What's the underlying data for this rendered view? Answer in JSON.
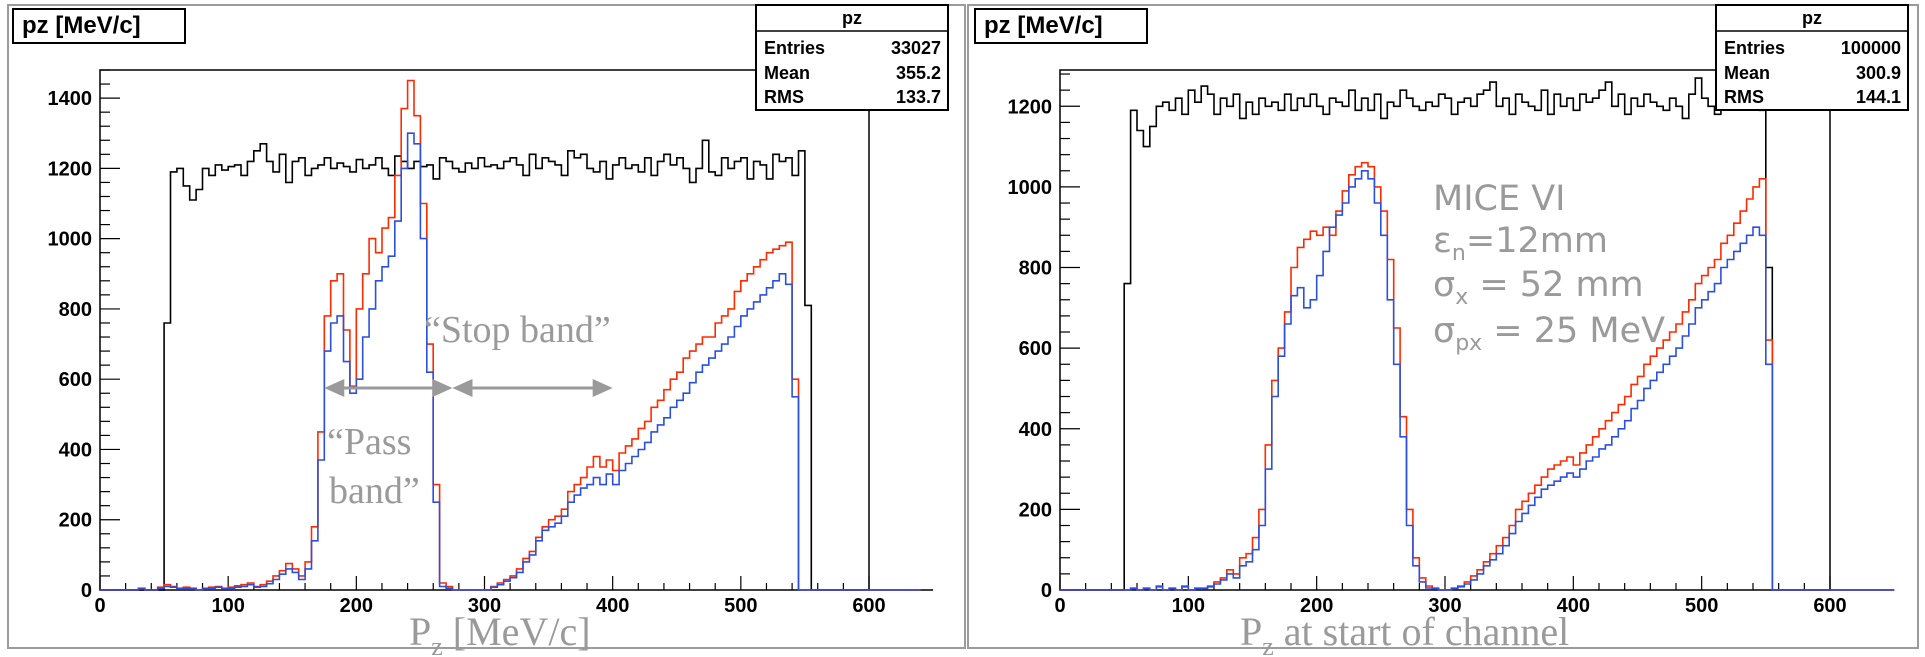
{
  "colors": {
    "total": "#000000",
    "red": "#ff2a00",
    "blue": "#2b4fe0",
    "annotation": "#9a9a9a"
  },
  "chart_data": [
    {
      "type": "histogram",
      "title": "pz [MeV/c]",
      "stats": {
        "name": "pz",
        "rows": [
          {
            "label": "Entries",
            "value": "33027"
          },
          {
            "label": "Mean",
            "value": "355.2"
          },
          {
            "label": "RMS",
            "value": "133.7"
          }
        ]
      },
      "xlim": [
        0,
        600
      ],
      "ylim": [
        0,
        1480
      ],
      "xticks": [
        0,
        100,
        200,
        300,
        400,
        500,
        600
      ],
      "yticks": [
        0,
        200,
        400,
        600,
        800,
        1000,
        1200,
        1400
      ],
      "xtitle": "P",
      "xtitle_sub": "z",
      "xtitle_rest": " [MeV/c]",
      "annotations": {
        "stop_band": "“Stop band”",
        "pass_band_1": "“Pass",
        "pass_band_2": "band”",
        "pass_arrow": [
          175,
          275
        ],
        "stop_arrow": [
          275,
          400
        ],
        "arrow_y": 575
      },
      "bin_start": 0,
      "bin_width": 5,
      "series": [
        {
          "color": "total",
          "values": [
            0,
            0,
            0,
            0,
            0,
            0,
            0,
            0,
            0,
            0,
            760,
            1190,
            1200,
            1150,
            1110,
            1140,
            1200,
            1180,
            1210,
            1195,
            1205,
            1210,
            1180,
            1220,
            1250,
            1270,
            1220,
            1190,
            1240,
            1160,
            1220,
            1230,
            1180,
            1200,
            1210,
            1230,
            1200,
            1215,
            1205,
            1190,
            1225,
            1200,
            1210,
            1230,
            1200,
            1180,
            1235,
            1220,
            1200,
            1220,
            1205,
            1210,
            1170,
            1230,
            1220,
            1200,
            1190,
            1215,
            1200,
            1230,
            1205,
            1210,
            1200,
            1220,
            1230,
            1210,
            1180,
            1240,
            1200,
            1230,
            1220,
            1210,
            1180,
            1250,
            1230,
            1240,
            1200,
            1190,
            1220,
            1170,
            1210,
            1230,
            1200,
            1210,
            1190,
            1230,
            1180,
            1220,
            1240,
            1210,
            1230,
            1200,
            1160,
            1200,
            1280,
            1190,
            1180,
            1230,
            1200,
            1220,
            1230,
            1170,
            1220,
            1210,
            1170,
            1240,
            1220,
            1230,
            1180,
            1250,
            810,
            0,
            0,
            0,
            0,
            0,
            0,
            0,
            0,
            0,
            0,
            0,
            0,
            0,
            0,
            0,
            0,
            0,
            0,
            0
          ]
        },
        {
          "color": "red",
          "values": [
            0,
            0,
            0,
            0,
            0,
            0,
            5,
            0,
            0,
            8,
            15,
            10,
            5,
            8,
            5,
            0,
            5,
            8,
            10,
            5,
            8,
            12,
            15,
            20,
            10,
            15,
            25,
            40,
            55,
            75,
            60,
            40,
            80,
            180,
            450,
            780,
            880,
            900,
            740,
            580,
            800,
            900,
            1000,
            960,
            1030,
            1060,
            1180,
            1370,
            1450,
            1350,
            1100,
            700,
            300,
            20,
            10,
            0,
            0,
            0,
            0,
            0,
            0,
            10,
            20,
            30,
            40,
            60,
            90,
            110,
            150,
            180,
            200,
            210,
            230,
            280,
            300,
            320,
            350,
            380,
            350,
            370,
            340,
            390,
            410,
            430,
            460,
            480,
            520,
            540,
            570,
            600,
            620,
            660,
            680,
            700,
            720,
            720,
            760,
            780,
            800,
            850,
            880,
            900,
            920,
            940,
            960,
            970,
            980,
            990,
            600,
            0,
            0,
            0,
            0,
            0,
            0,
            0,
            0,
            0,
            0,
            0,
            0,
            0,
            0,
            0,
            0,
            0,
            0,
            0
          ]
        },
        {
          "color": "blue",
          "values": [
            0,
            0,
            0,
            0,
            0,
            0,
            3,
            0,
            0,
            5,
            10,
            8,
            3,
            5,
            3,
            0,
            3,
            5,
            8,
            3,
            5,
            8,
            10,
            15,
            8,
            10,
            18,
            30,
            45,
            60,
            50,
            30,
            60,
            140,
            370,
            680,
            760,
            780,
            650,
            560,
            600,
            720,
            800,
            880,
            920,
            950,
            1050,
            1200,
            1300,
            1270,
            1000,
            620,
            250,
            10,
            5,
            0,
            0,
            0,
            0,
            0,
            0,
            8,
            15,
            25,
            35,
            50,
            80,
            100,
            140,
            170,
            180,
            190,
            210,
            250,
            270,
            290,
            300,
            320,
            300,
            330,
            300,
            340,
            360,
            380,
            400,
            420,
            450,
            470,
            490,
            520,
            540,
            560,
            590,
            620,
            640,
            660,
            680,
            700,
            720,
            750,
            780,
            800,
            820,
            840,
            860,
            880,
            900,
            870,
            550,
            0,
            0,
            0,
            0,
            0,
            0,
            0,
            0,
            0,
            0,
            0,
            0,
            0,
            0,
            0,
            0,
            0,
            0,
            0
          ]
        }
      ]
    },
    {
      "type": "histogram",
      "title": "pz [MeV/c]",
      "stats": {
        "name": "pz",
        "rows": [
          {
            "label": "Entries",
            "value": "100000"
          },
          {
            "label": "Mean",
            "value": "300.9"
          },
          {
            "label": "RMS",
            "value": "144.1"
          }
        ]
      },
      "xlim": [
        0,
        600
      ],
      "ylim": [
        0,
        1290
      ],
      "xticks": [
        0,
        100,
        200,
        300,
        400,
        500,
        600
      ],
      "yticks": [
        0,
        200,
        400,
        600,
        800,
        1000,
        1200
      ],
      "xtitle": "P",
      "xtitle_sub": "z",
      "xtitle_rest": " at start of channel",
      "annotations": {
        "line1": "MICE VI",
        "line2_main": "ε",
        "line2_sub": "n",
        "line2_rest": "=12mm",
        "line3_main": "σ",
        "line3_sub": "x",
        "line3_rest": " = 52 mm",
        "line4_main": "σ",
        "line4_sub": "px",
        "line4_rest": " = 25 MeV"
      },
      "bin_start": 0,
      "bin_width": 5,
      "series": [
        {
          "color": "total",
          "values": [
            0,
            0,
            0,
            0,
            0,
            0,
            0,
            0,
            0,
            0,
            760,
            1190,
            1140,
            1100,
            1150,
            1200,
            1210,
            1190,
            1220,
            1180,
            1240,
            1210,
            1250,
            1230,
            1180,
            1220,
            1200,
            1230,
            1170,
            1210,
            1180,
            1220,
            1200,
            1210,
            1190,
            1230,
            1190,
            1220,
            1200,
            1230,
            1200,
            1180,
            1220,
            1210,
            1200,
            1240,
            1190,
            1220,
            1190,
            1230,
            1170,
            1210,
            1200,
            1240,
            1220,
            1200,
            1190,
            1210,
            1200,
            1230,
            1220,
            1180,
            1210,
            1220,
            1200,
            1230,
            1240,
            1260,
            1200,
            1220,
            1180,
            1230,
            1210,
            1200,
            1190,
            1240,
            1180,
            1230,
            1200,
            1220,
            1190,
            1230,
            1210,
            1220,
            1240,
            1260,
            1200,
            1230,
            1180,
            1220,
            1200,
            1230,
            1210,
            1200,
            1190,
            1220,
            1200,
            1170,
            1230,
            1270,
            1220,
            1200,
            1180,
            1240,
            1220,
            1210,
            1240,
            1200,
            1230,
            1190,
            800,
            0,
            0,
            0,
            0,
            0,
            0,
            0,
            0,
            0,
            0,
            0,
            0,
            0,
            0,
            0,
            0,
            0,
            0,
            0
          ]
        },
        {
          "color": "red",
          "values": [
            0,
            0,
            0,
            0,
            0,
            0,
            0,
            0,
            0,
            0,
            0,
            5,
            0,
            5,
            0,
            10,
            0,
            5,
            0,
            10,
            0,
            5,
            5,
            10,
            20,
            30,
            50,
            40,
            80,
            90,
            130,
            200,
            360,
            520,
            600,
            690,
            800,
            850,
            870,
            890,
            880,
            900,
            880,
            940,
            990,
            1030,
            1050,
            1060,
            1050,
            1000,
            940,
            820,
            650,
            430,
            200,
            80,
            30,
            10,
            5,
            0,
            0,
            5,
            10,
            20,
            35,
            50,
            70,
            90,
            110,
            130,
            160,
            200,
            220,
            240,
            260,
            280,
            300,
            310,
            320,
            330,
            310,
            340,
            360,
            380,
            400,
            420,
            440,
            460,
            480,
            510,
            530,
            560,
            580,
            600,
            620,
            640,
            660,
            690,
            720,
            760,
            780,
            800,
            820,
            860,
            880,
            910,
            940,
            970,
            1000,
            1020,
            620,
            0,
            0,
            0,
            0,
            0,
            0,
            0,
            0,
            0,
            0,
            0,
            0,
            0,
            0,
            0,
            0,
            0,
            0,
            0
          ]
        },
        {
          "color": "blue",
          "values": [
            0,
            0,
            0,
            0,
            0,
            0,
            0,
            0,
            0,
            0,
            0,
            3,
            0,
            3,
            0,
            8,
            0,
            3,
            0,
            8,
            0,
            3,
            3,
            8,
            15,
            25,
            40,
            30,
            60,
            70,
            100,
            160,
            300,
            480,
            580,
            660,
            730,
            750,
            700,
            720,
            780,
            840,
            900,
            930,
            960,
            1000,
            1020,
            1040,
            1020,
            960,
            880,
            720,
            560,
            380,
            160,
            60,
            20,
            5,
            3,
            0,
            0,
            3,
            8,
            15,
            25,
            40,
            60,
            75,
            90,
            110,
            140,
            170,
            190,
            210,
            230,
            250,
            260,
            270,
            280,
            290,
            280,
            300,
            320,
            330,
            350,
            360,
            380,
            400,
            420,
            450,
            470,
            500,
            520,
            540,
            560,
            580,
            600,
            630,
            660,
            700,
            720,
            740,
            760,
            800,
            820,
            840,
            860,
            880,
            900,
            880,
            560,
            0,
            0,
            0,
            0,
            0,
            0,
            0,
            0,
            0,
            0,
            0,
            0,
            0,
            0,
            0,
            0,
            0,
            0,
            0
          ]
        }
      ]
    }
  ]
}
